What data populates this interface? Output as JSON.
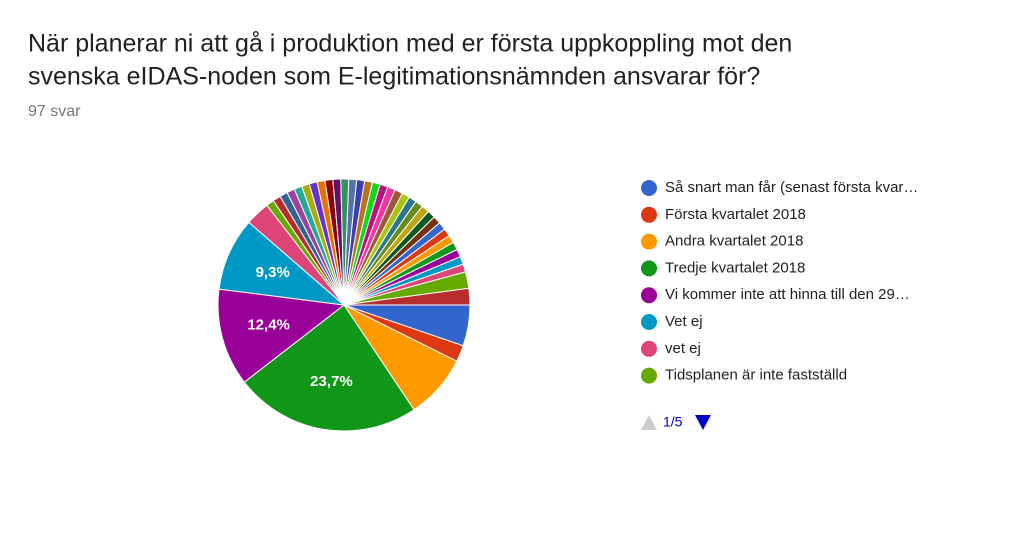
{
  "chart_data": {
    "type": "pie",
    "title": [
      "När planerar ni att gå i produktion med er första uppkoppling mot den",
      "svenska eIDAS-noden som E-legitimationsnämnden ansvarar för?"
    ],
    "subtitle": "97 svar",
    "categories": [
      "Så snart man får (senast första kvar…",
      "Första kvartalet 2018",
      "Andra kvartalet 2018",
      "Tredje kvartalet 2018",
      "Vi kommer inte att hinna till den 29…",
      "Vet ej",
      "vet ej",
      "Tidsplanen är inte fastställd",
      null,
      null,
      null,
      null,
      null,
      null,
      null,
      null,
      null,
      null,
      null,
      null,
      null,
      null,
      null,
      null,
      null,
      null,
      null,
      null,
      null,
      null,
      null,
      null,
      null,
      null,
      null,
      null,
      null,
      null,
      null,
      null
    ],
    "values": [
      5.2,
      2.1,
      8.2,
      23.7,
      12.4,
      9.3,
      3.1,
      1.0,
      1.0,
      1.0,
      1.0,
      1.0,
      1.0,
      1.0,
      1.0,
      1.0,
      1.0,
      1.0,
      1.0,
      1.0,
      1.0,
      1.0,
      1.0,
      1.0,
      1.0,
      1.0,
      1.0,
      1.0,
      1.0,
      1.0,
      1.0,
      1.0,
      1.0,
      1.0,
      1.0,
      1.0,
      1.0,
      1.0,
      2.1,
      2.1
    ],
    "value_labels": [
      null,
      null,
      null,
      "23,7%",
      "12,4%",
      "9,3%",
      null,
      null,
      null,
      null,
      null,
      null,
      null,
      null,
      null,
      null,
      null,
      null,
      null,
      null,
      null,
      null,
      null,
      null,
      null,
      null,
      null,
      null,
      null,
      null,
      null,
      null,
      null,
      null,
      null,
      null,
      null,
      null,
      null,
      null
    ],
    "colors": [
      "#3366cc",
      "#dc3912",
      "#ff9900",
      "#109618",
      "#990099",
      "#0099c6",
      "#dd4477",
      "#66aa00",
      "#b82e2e",
      "#316395",
      "#994499",
      "#22aa99",
      "#aaaa11",
      "#6633cc",
      "#e67300",
      "#8b0707",
      "#651067",
      "#329262",
      "#5574a6",
      "#3b3eac",
      "#b77322",
      "#16d620",
      "#b91383",
      "#f4359e",
      "#9c5935",
      "#a9c413",
      "#2a778d",
      "#668d1c",
      "#bea413",
      "#0c5922",
      "#743411",
      "#3366cc",
      "#dc3912",
      "#ff9900",
      "#109618",
      "#990099",
      "#0099c6",
      "#dd4477",
      "#66aa00",
      "#b82e2e"
    ],
    "legend_page": "1/5"
  }
}
